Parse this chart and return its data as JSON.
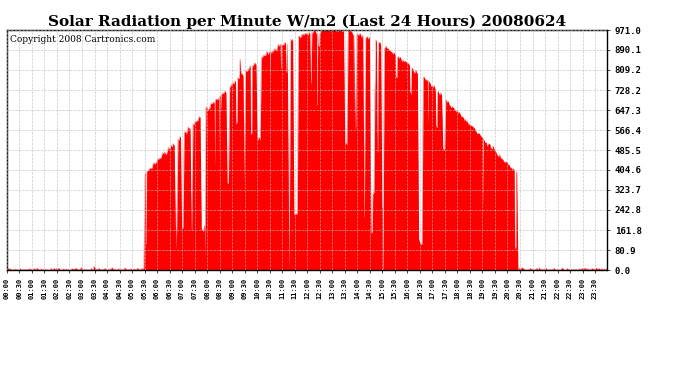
{
  "title": "Solar Radiation per Minute W/m2 (Last 24 Hours) 20080624",
  "copyright": "Copyright 2008 Cartronics.com",
  "yticks": [
    0.0,
    80.9,
    161.8,
    242.8,
    323.7,
    404.6,
    485.5,
    566.4,
    647.3,
    728.2,
    809.2,
    890.1,
    971.0
  ],
  "ymax": 971.0,
  "ymin": 0.0,
  "fill_color": "#FF0000",
  "line_color": "#FF0000",
  "bg_color": "#FFFFFF",
  "grid_color": "#BBBBBB",
  "dashed_line_color": "#FF0000",
  "title_fontsize": 11,
  "copyright_fontsize": 6.5,
  "sunrise_hour": 5.5,
  "sunset_hour": 20.4,
  "peak_value": 971.0
}
